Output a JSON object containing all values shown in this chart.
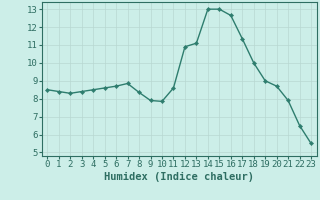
{
  "x": [
    0,
    1,
    2,
    3,
    4,
    5,
    6,
    7,
    8,
    9,
    10,
    11,
    12,
    13,
    14,
    15,
    16,
    17,
    18,
    19,
    20,
    21,
    22,
    23
  ],
  "y": [
    8.5,
    8.4,
    8.3,
    8.4,
    8.5,
    8.6,
    8.7,
    8.85,
    8.35,
    7.9,
    7.85,
    8.6,
    10.9,
    11.1,
    13.0,
    13.0,
    12.65,
    11.35,
    10.0,
    9.0,
    8.7,
    7.9,
    6.5,
    5.5
  ],
  "line_color": "#2e7d6e",
  "marker": "D",
  "marker_size": 2.2,
  "background_color": "#cceee8",
  "grid_color": "#b8d8d2",
  "xlabel": "Humidex (Indice chaleur)",
  "xlabel_fontsize": 7.5,
  "ylim": [
    4.8,
    13.4
  ],
  "xlim": [
    -0.5,
    23.5
  ],
  "yticks": [
    5,
    6,
    7,
    8,
    9,
    10,
    11,
    12,
    13
  ],
  "xticks": [
    0,
    1,
    2,
    3,
    4,
    5,
    6,
    7,
    8,
    9,
    10,
    11,
    12,
    13,
    14,
    15,
    16,
    17,
    18,
    19,
    20,
    21,
    22,
    23
  ],
  "tick_color": "#2e6e62",
  "tick_fontsize": 6.5,
  "line_width": 1.0,
  "spine_color": "#2e6e62"
}
